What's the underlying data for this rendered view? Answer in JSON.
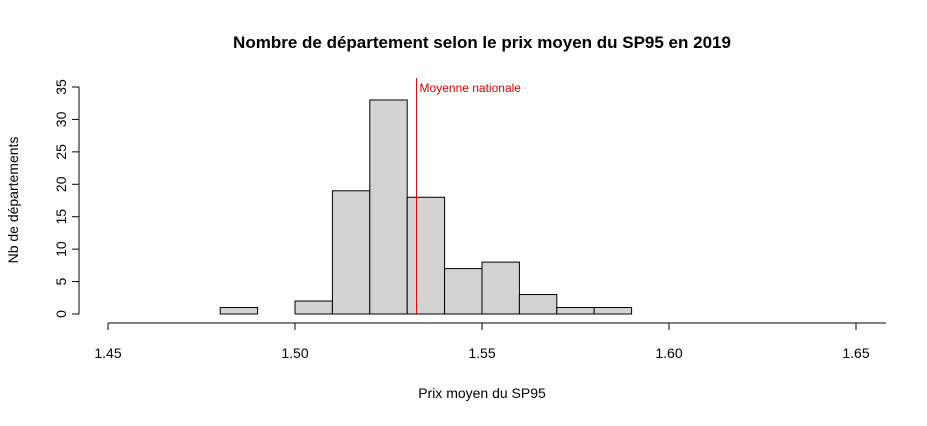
{
  "chart_data": {
    "type": "bar",
    "title": "Nombre de département selon le prix moyen du SP95 en 2019",
    "xlabel": "Prix moyen du SP95",
    "ylabel": "Nb de départements",
    "xlim": [
      1.45,
      1.65
    ],
    "ylim": [
      0,
      35
    ],
    "x_ticks": [
      1.45,
      1.5,
      1.55,
      1.6,
      1.65
    ],
    "x_tick_labels": [
      "1.45",
      "1.50",
      "1.55",
      "1.60",
      "1.65"
    ],
    "y_ticks": [
      0,
      5,
      10,
      15,
      20,
      25,
      30,
      35
    ],
    "y_tick_labels": [
      "0",
      "5",
      "10",
      "15",
      "20",
      "25",
      "30",
      "35"
    ],
    "bins": [
      {
        "x0": 1.48,
        "x1": 1.49,
        "count": 1
      },
      {
        "x0": 1.49,
        "x1": 1.5,
        "count": 0
      },
      {
        "x0": 1.5,
        "x1": 1.51,
        "count": 2
      },
      {
        "x0": 1.51,
        "x1": 1.52,
        "count": 19
      },
      {
        "x0": 1.52,
        "x1": 1.53,
        "count": 33
      },
      {
        "x0": 1.53,
        "x1": 1.54,
        "count": 18
      },
      {
        "x0": 1.54,
        "x1": 1.55,
        "count": 7
      },
      {
        "x0": 1.55,
        "x1": 1.56,
        "count": 8
      },
      {
        "x0": 1.56,
        "x1": 1.57,
        "count": 3
      },
      {
        "x0": 1.57,
        "x1": 1.58,
        "count": 1
      },
      {
        "x0": 1.58,
        "x1": 1.59,
        "count": 1
      },
      {
        "x0": 1.59,
        "x1": 1.6,
        "count": 0
      },
      {
        "x0": 1.6,
        "x1": 1.61,
        "count": 0
      },
      {
        "x0": 1.61,
        "x1": 1.62,
        "count": 0
      },
      {
        "x0": 1.62,
        "x1": 1.63,
        "count": 0
      },
      {
        "x0": 1.63,
        "x1": 1.64,
        "count": 0
      },
      {
        "x0": 1.64,
        "x1": 1.65,
        "count": 0
      },
      {
        "x0": 1.65,
        "x1": 1.66,
        "count": 0
      }
    ],
    "reference_line": {
      "x": 1.5325,
      "label": "Moyenne nationale",
      "color": "#dd0000"
    },
    "bar_fill": "#d3d3d3",
    "bar_stroke": "#000000",
    "grid": false,
    "legend": "none"
  }
}
